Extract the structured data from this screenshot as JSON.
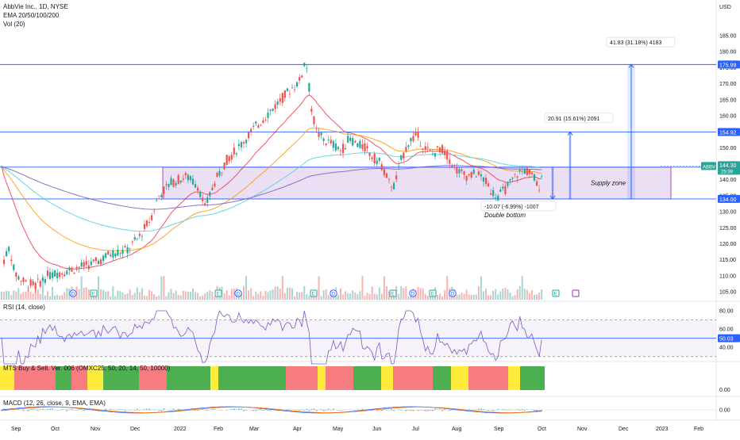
{
  "header": {
    "symbol": "AbbVie Inc., 1D, NYSE",
    "ema": "EMA 20/50/100/200",
    "vol": "Vol (20)",
    "currency": "USD"
  },
  "panes": {
    "rsi_title": "RSI (14, close)",
    "mts_title": "MTS Buy & Sell. Ver. 006 (OMXC25, 50, 20, 14, 50, 10000)",
    "macd_title": "MACD (12, 26, close, 9, EMA, EMA)"
  },
  "colors": {
    "up": "#26a69a",
    "down": "#ef5350",
    "hline": "#2962ff",
    "zone_fill": "#e6d7f0",
    "zone_stroke": "#9c27b0",
    "ema20": "#f23645",
    "ema50": "#ff9800",
    "ema100": "#4dd0e1",
    "ema200": "#7e57c2",
    "mts_green": "#4caf50",
    "mts_red": "#f77c80",
    "mts_yellow": "#ffeb3b"
  },
  "chart_data": {
    "type": "candlestick",
    "ticker": "ABBV",
    "x_ticks": [
      "Sep",
      "Oct",
      "Nov",
      "Dec",
      "2022",
      "Feb",
      "Mar",
      "Apr",
      "May",
      "Jun",
      "Jul",
      "Aug",
      "Sep",
      "Oct",
      "Nov",
      "Dec",
      "2023",
      "Feb"
    ],
    "y_ticks": [
      105,
      110,
      115,
      120,
      125,
      130,
      135,
      140,
      145,
      150,
      155,
      160,
      165,
      170,
      175,
      180,
      185
    ],
    "ylim": [
      104,
      187
    ],
    "levels": [
      {
        "label": "175.99",
        "value": 175.99
      },
      {
        "label": "154.92",
        "value": 154.92
      },
      {
        "label": "143.92",
        "value": 143.92
      },
      {
        "label": "134.00",
        "value": 134.0
      }
    ],
    "last_price": {
      "label": "144.30",
      "value": 144.3,
      "countdown": "25:39"
    },
    "supply_zone": {
      "label": "Supply zone",
      "top": 143.92,
      "bottom": 134.0,
      "from": "2021-12-01",
      "to": "2022-11-15"
    },
    "annotations": {
      "double_bottom": "Double bottom",
      "measure_down": "-10.07 (-6.99%) -1007",
      "measure_mid": "20.91 (15.61%) 2091",
      "measure_up": "41.83 (31.18%) 4183"
    },
    "events": [
      "D",
      "E",
      "E",
      "D",
      "E",
      "D",
      "E",
      "D",
      "E",
      "D",
      "E"
    ],
    "rsi": {
      "labels": [
        "80.00",
        "60.00",
        "40.00"
      ],
      "levels": [
        80,
        60,
        40
      ],
      "value_label": "50.03",
      "value": 50.03
    },
    "mts": {
      "zero_label": "0.00"
    },
    "macd": {
      "zero_label": "0.00"
    }
  }
}
